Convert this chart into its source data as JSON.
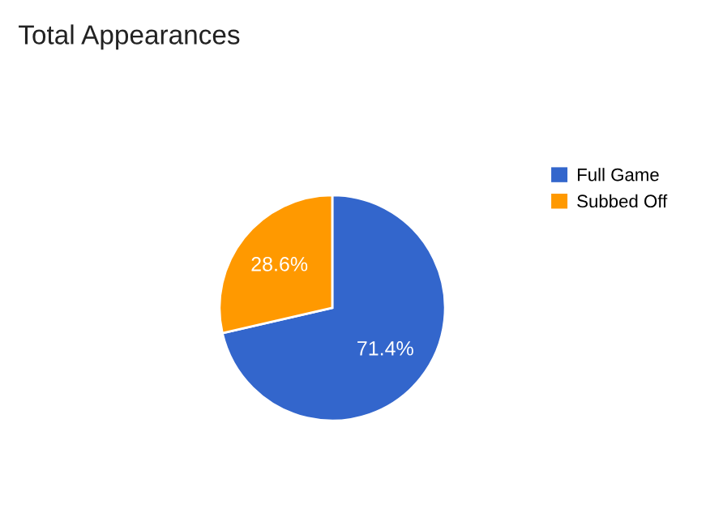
{
  "chart_data": {
    "type": "pie",
    "title": "Total Appearances",
    "categories": [
      "Full Game",
      "Subbed Off"
    ],
    "values": [
      71.4,
      28.6
    ],
    "colors": [
      "#3366cc",
      "#ff9900"
    ],
    "value_labels": [
      "71.4%",
      "28.6%"
    ],
    "legend": "right"
  }
}
